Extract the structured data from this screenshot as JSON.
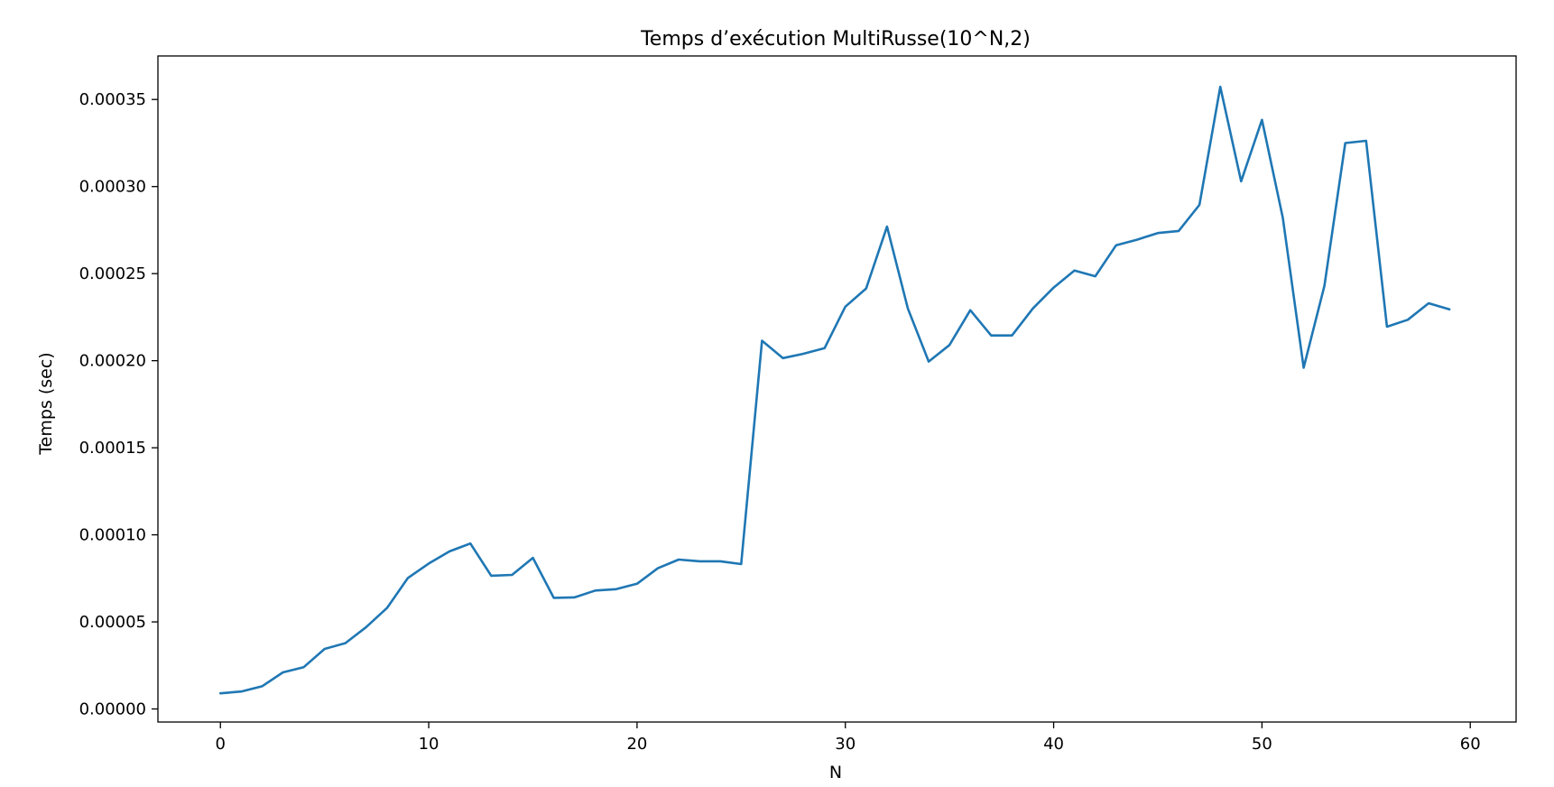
{
  "chart_data": {
    "type": "line",
    "title": "Temps d’exécution MultiRusse(10^N,2)",
    "xlabel": "N",
    "ylabel": "Temps (sec)",
    "xlim": [
      -3,
      62.2
    ],
    "ylim": [
      -7.5e-06,
      0.000375
    ],
    "x_ticks": [
      0,
      10,
      20,
      30,
      40,
      50,
      60
    ],
    "x_tick_labels": [
      "0",
      "10",
      "20",
      "30",
      "40",
      "50",
      "60"
    ],
    "y_ticks": [
      0,
      5e-05,
      0.0001,
      0.00015,
      0.0002,
      0.00025,
      0.0003,
      0.00035
    ],
    "y_tick_labels": [
      "0.00000",
      "0.00005",
      "0.00010",
      "0.00015",
      "0.00020",
      "0.00025",
      "0.00030",
      "0.00035"
    ],
    "grid": false,
    "line_color": "#1f77b4",
    "series": [
      {
        "x": [
          0,
          1,
          2,
          3,
          4,
          5,
          6,
          7,
          8,
          9,
          10,
          11,
          12,
          13,
          14,
          15,
          16,
          17,
          18,
          19,
          20,
          21,
          22,
          23,
          24,
          25,
          26,
          27,
          28,
          29,
          30,
          31,
          32,
          33,
          34,
          35,
          36,
          37,
          38,
          39,
          40,
          41,
          42,
          43,
          44,
          45,
          46,
          47,
          48,
          49,
          50,
          51,
          52,
          53,
          54,
          55,
          56,
          57,
          58,
          59
        ],
        "values": [
          9e-06,
          1e-05,
          1.3e-05,
          2.1e-05,
          2.4e-05,
          3.45e-05,
          3.78e-05,
          4.7e-05,
          5.8e-05,
          7.52e-05,
          8.35e-05,
          9.05e-05,
          9.5e-05,
          7.65e-05,
          7.7e-05,
          8.68e-05,
          6.38e-05,
          6.41e-05,
          6.8e-05,
          6.88e-05,
          7.19e-05,
          8.08e-05,
          8.58e-05,
          8.48e-05,
          8.48e-05,
          8.32e-05,
          0.0002115,
          0.0002015,
          0.000204,
          0.0002072,
          0.000231,
          0.0002415,
          0.000277,
          0.00023,
          0.0001995,
          0.000209,
          0.000229,
          0.0002145,
          0.0002145,
          0.00023,
          0.000242,
          0.0002518,
          0.0002485,
          0.0002663,
          0.0002695,
          0.0002733,
          0.0002745,
          0.0002895,
          0.0003573,
          0.000303,
          0.0003383,
          0.000282,
          0.000196,
          0.000243,
          0.000325,
          0.0003263,
          0.0002195,
          0.0002235,
          0.000233,
          0.0002295
        ]
      }
    ]
  }
}
